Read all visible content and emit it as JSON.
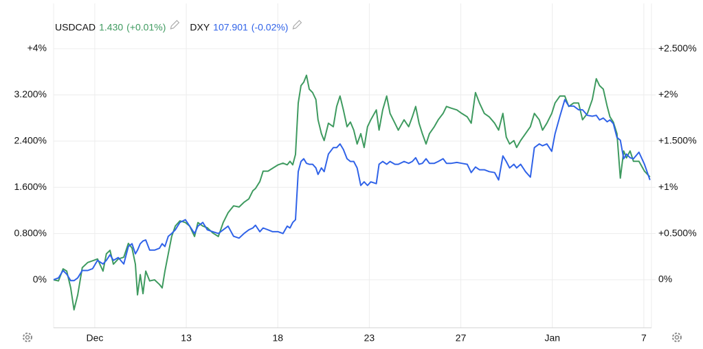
{
  "chart_data": {
    "type": "line",
    "xlim": [
      -1.35,
      18.25
    ],
    "xticks": [
      {
        "value": 0,
        "label": "Dec"
      },
      {
        "value": 3,
        "label": "13"
      },
      {
        "value": 6,
        "label": "18"
      },
      {
        "value": 9,
        "label": "23"
      },
      {
        "value": 12,
        "label": "27"
      },
      {
        "value": 15,
        "label": "Jan"
      },
      {
        "value": 18,
        "label": "7"
      }
    ],
    "ylim": [
      -0.83,
      4.19
    ],
    "yticks": [
      {
        "value": 0,
        "label": "0%"
      },
      {
        "value": 0.8,
        "label": "0.800%"
      },
      {
        "value": 1.6,
        "label": "1.600%"
      },
      {
        "value": 2.4,
        "label": "2.400%"
      },
      {
        "value": 3.2,
        "label": "3.200%"
      },
      {
        "value": 4,
        "label": "+4%"
      }
    ],
    "y2lim": [
      -0.52,
      2.62
    ],
    "y2ticks": [
      {
        "value": 0,
        "label": "0%"
      },
      {
        "value": 0.5,
        "label": "+0.500%"
      },
      {
        "value": 1,
        "label": "+1%"
      },
      {
        "value": 1.5,
        "label": "+1.500%"
      },
      {
        "value": 2,
        "label": "+2%"
      },
      {
        "value": 2.5,
        "label": "+2.500%"
      }
    ],
    "grid": true,
    "x": [
      -1.35,
      -1.19,
      -1.04,
      -0.92,
      -0.79,
      -0.68,
      -0.56,
      -0.41,
      -0.23,
      -0.07,
      0.09,
      0.27,
      0.38,
      0.5,
      0.61,
      0.77,
      0.95,
      1.1,
      1.22,
      1.33,
      1.4,
      1.49,
      1.58,
      1.67,
      1.8,
      1.96,
      2.12,
      2.21,
      2.3,
      2.41,
      2.52,
      2.64,
      2.79,
      2.97,
      3.11,
      3.27,
      3.38,
      3.54,
      3.69,
      3.87,
      4.05,
      4.21,
      4.37,
      4.55,
      4.73,
      4.89,
      5.05,
      5.18,
      5.27,
      5.41,
      5.52,
      5.68,
      5.83,
      6.01,
      6.17,
      6.31,
      6.4,
      6.49,
      6.58,
      6.67,
      6.76,
      6.85,
      6.94,
      7.03,
      7.14,
      7.25,
      7.32,
      7.43,
      7.52,
      7.66,
      7.82,
      7.93,
      8.04,
      8.15,
      8.27,
      8.38,
      8.49,
      8.6,
      8.72,
      8.83,
      8.94,
      9.05,
      9.23,
      9.32,
      9.44,
      9.57,
      9.68,
      9.84,
      9.95,
      10.14,
      10.29,
      10.41,
      10.52,
      10.63,
      10.74,
      10.86,
      10.97,
      11.13,
      11.26,
      11.42,
      11.53,
      11.69,
      11.87,
      12.03,
      12.21,
      12.34,
      12.48,
      12.61,
      12.77,
      12.93,
      13.11,
      13.24,
      13.38,
      13.49,
      13.6,
      13.74,
      13.83,
      13.96,
      14.12,
      14.28,
      14.41,
      14.57,
      14.68,
      14.82,
      14.98,
      15.09,
      15.25,
      15.41,
      15.54,
      15.7,
      15.86,
      15.99,
      16.15,
      16.31,
      16.44,
      16.55,
      16.67,
      16.8,
      16.89,
      17.0,
      17.12,
      17.23,
      17.34,
      17.43,
      17.55,
      17.66,
      17.84,
      18.02,
      18.2
    ],
    "series": [
      {
        "name": "USDCAD",
        "price": "1.430",
        "change": "(+0.01%)",
        "color": "#3e9a5f",
        "values": [
          0,
          -0.02,
          0.19,
          0.15,
          -0.14,
          -0.52,
          -0.26,
          0.21,
          0.3,
          0.33,
          0.36,
          0.15,
          0.45,
          0.51,
          0.27,
          0.36,
          0.39,
          0.63,
          0.55,
          0.27,
          -0.26,
          0.09,
          -0.24,
          0.15,
          -0.02,
          0,
          -0.08,
          -0.14,
          0.15,
          0.45,
          0.75,
          0.93,
          1.02,
          0.99,
          0.93,
          0.75,
          0.99,
          0.93,
          0.9,
          0.81,
          0.75,
          0.99,
          1.16,
          1.28,
          1.26,
          1.34,
          1.4,
          1.54,
          1.58,
          1.7,
          1.88,
          1.88,
          1.93,
          1.99,
          2.02,
          1.99,
          2.05,
          1.99,
          2.17,
          3.06,
          3.36,
          3.42,
          3.54,
          3.3,
          3.24,
          3.12,
          2.77,
          2.53,
          2.41,
          2.71,
          2.65,
          3.0,
          3.18,
          2.94,
          2.65,
          2.73,
          2.59,
          2.35,
          2.53,
          2.29,
          2.65,
          2.77,
          2.94,
          2.59,
          2.94,
          3.18,
          2.88,
          2.71,
          2.59,
          2.77,
          2.65,
          2.82,
          3.0,
          2.71,
          2.53,
          2.35,
          2.53,
          2.65,
          2.77,
          2.88,
          3.0,
          2.97,
          2.94,
          2.88,
          2.82,
          2.71,
          3.24,
          3.06,
          2.88,
          2.82,
          2.71,
          2.59,
          2.88,
          2.47,
          2.35,
          2.41,
          2.29,
          2.41,
          2.53,
          2.65,
          2.88,
          2.77,
          2.59,
          2.71,
          2.88,
          3.06,
          3.18,
          3.18,
          3.0,
          3.06,
          3.06,
          2.77,
          2.88,
          3.12,
          3.48,
          3.36,
          3.3,
          3.0,
          2.82,
          2.73,
          2.53,
          1.76,
          2.23,
          2.11,
          2.23,
          2.05,
          2.05,
          1.88,
          1.78
        ]
      },
      {
        "name": "DXY",
        "price": "107.901",
        "change": "(-0.02%)",
        "color": "#2f62e8",
        "axis": "y2",
        "values": [
          0,
          0.02,
          0.1,
          0.06,
          -0.01,
          -0.01,
          0.02,
          0.1,
          0.1,
          0.12,
          0.21,
          0.17,
          0.21,
          0.27,
          0.21,
          0.24,
          0.17,
          0.36,
          0.39,
          0.28,
          0.32,
          0.39,
          0.42,
          0.43,
          0.32,
          0.32,
          0.34,
          0.39,
          0.36,
          0.47,
          0.5,
          0.54,
          0.62,
          0.65,
          0.58,
          0.5,
          0.58,
          0.62,
          0.54,
          0.52,
          0.5,
          0.54,
          0.58,
          0.47,
          0.45,
          0.5,
          0.54,
          0.56,
          0.59,
          0.52,
          0.56,
          0.54,
          0.52,
          0.52,
          0.5,
          0.58,
          0.56,
          0.62,
          0.65,
          1.17,
          1.28,
          1.31,
          1.26,
          1.25,
          1.25,
          1.21,
          1.14,
          1.21,
          1.17,
          1.36,
          1.43,
          1.43,
          1.47,
          1.41,
          1.31,
          1.28,
          1.28,
          1.21,
          1.02,
          1.06,
          1.02,
          1.06,
          1.04,
          1.25,
          1.28,
          1.25,
          1.28,
          1.25,
          1.25,
          1.28,
          1.26,
          1.28,
          1.32,
          1.25,
          1.26,
          1.31,
          1.26,
          1.26,
          1.28,
          1.31,
          1.26,
          1.26,
          1.27,
          1.26,
          1.25,
          1.16,
          1.22,
          1.19,
          1.19,
          1.17,
          1.16,
          1.08,
          1.34,
          1.28,
          1.21,
          1.25,
          1.21,
          1.25,
          1.17,
          1.11,
          1.43,
          1.47,
          1.45,
          1.47,
          1.39,
          1.58,
          1.77,
          1.95,
          1.88,
          1.88,
          1.84,
          1.84,
          1.78,
          1.77,
          1.78,
          1.73,
          1.75,
          1.71,
          1.73,
          1.69,
          1.54,
          1.51,
          1.31,
          1.36,
          1.32,
          1.31,
          1.38,
          1.25,
          1.08
        ]
      }
    ]
  }
}
